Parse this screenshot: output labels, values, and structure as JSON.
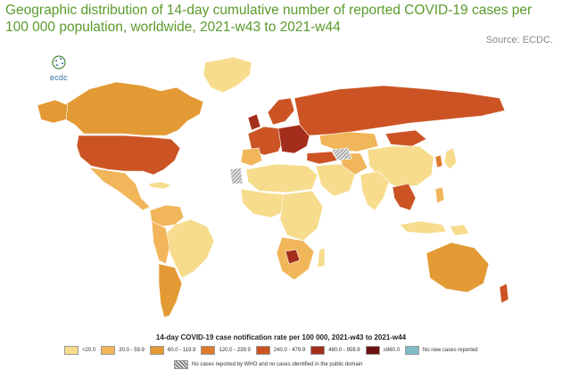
{
  "title": "Geographic distribution of 14-day cumulative number of reported COVID-19 cases per 100 000 population, worldwide, 2021-w43 to 2021-w44",
  "source": "Source: ECDC.",
  "logo_text": "ecdc",
  "legend": {
    "title": "14-day COVID-19 case notification rate per 100 000, 2021-w43 to 2021-w44",
    "items": [
      {
        "label": "<20.0",
        "color": "#f6dc8c"
      },
      {
        "label": "20.0 - 59.9",
        "color": "#f1b65a"
      },
      {
        "label": "60.0 - 119.9",
        "color": "#e39a34"
      },
      {
        "label": "120.0 - 239.9",
        "color": "#dd7a2c"
      },
      {
        "label": "240.0 - 479.9",
        "color": "#cc5424"
      },
      {
        "label": "480.0 - 959.9",
        "color": "#a42e1c"
      },
      {
        "label": "≥960.0",
        "color": "#6b1210"
      },
      {
        "label": "No new cases reported",
        "color": "#7fbcc8"
      }
    ],
    "hatch_label": "No cases reported by WHO and no cases identified in the public domain"
  }
}
